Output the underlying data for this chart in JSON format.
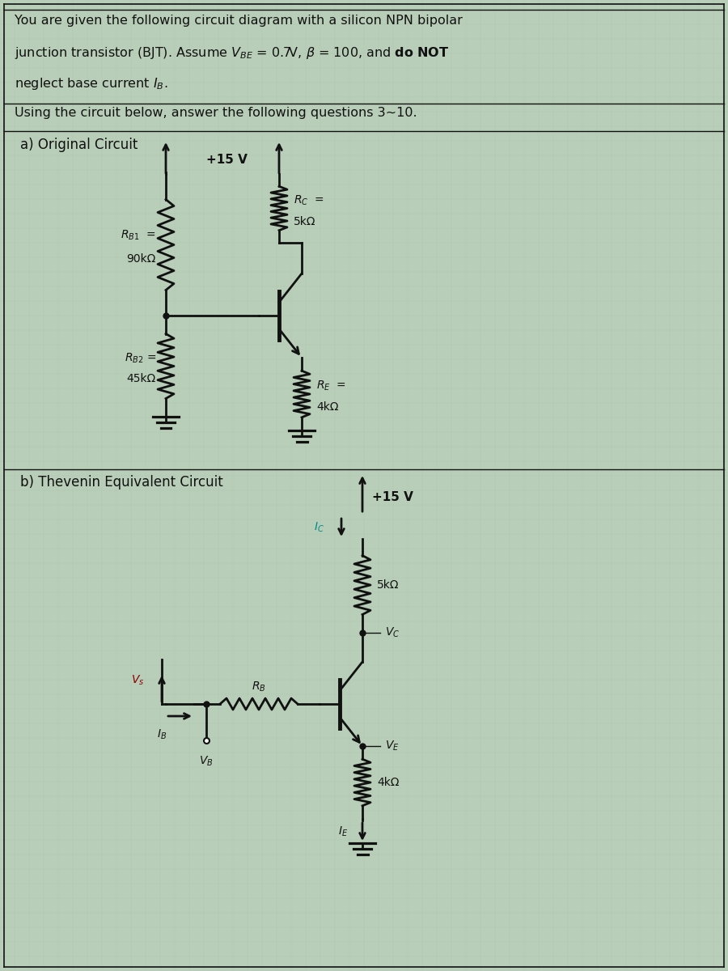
{
  "bg_color": "#b8ceb8",
  "text_color": "#111111",
  "line_color": "#111111",
  "red_color": "#8B0000",
  "cyan_color": "#008B8B",
  "title_line1": "You are given the following circuit diagram with a silicon NPN bipolar",
  "title_line2_pre": "junction transistor (BJT). Assume ",
  "title_line2_math": "V_{BE} = 0.7V, \\beta = 100",
  "title_line2_post": ", and ",
  "title_line2_bold": "do NOT",
  "title_line3": "neglect base current ",
  "title_line3_math": "I_B",
  "subtitle": "Using the circuit below, answer the following questions 3~10.",
  "label_a": "a) Original Circuit",
  "label_b": "b) Thevenin Equivalent Circuit",
  "vcc": "+15 V",
  "rb1_label1": "$R_{B1}$  =",
  "rb1_label2": "90kΩ",
  "rb2_label1": "$R_{B2}$ =",
  "rb2_label2": "45kΩ",
  "rc_label1": "$R_C$  =",
  "rc_label2": "5kΩ",
  "re_label1": "$R_E$  =",
  "re_label2": "4kΩ",
  "rb_label": "$R_B$",
  "vs_label": "$V_s$",
  "vb_label": "$V_B$",
  "vc_label": "$V_C$",
  "ve_label": "$V_E$",
  "ic_label": "$I_C$",
  "ib_label": "$I_B$",
  "ie_label": "$I_E$",
  "rc2_label": "5kΩ",
  "re2_label": "4kΩ"
}
